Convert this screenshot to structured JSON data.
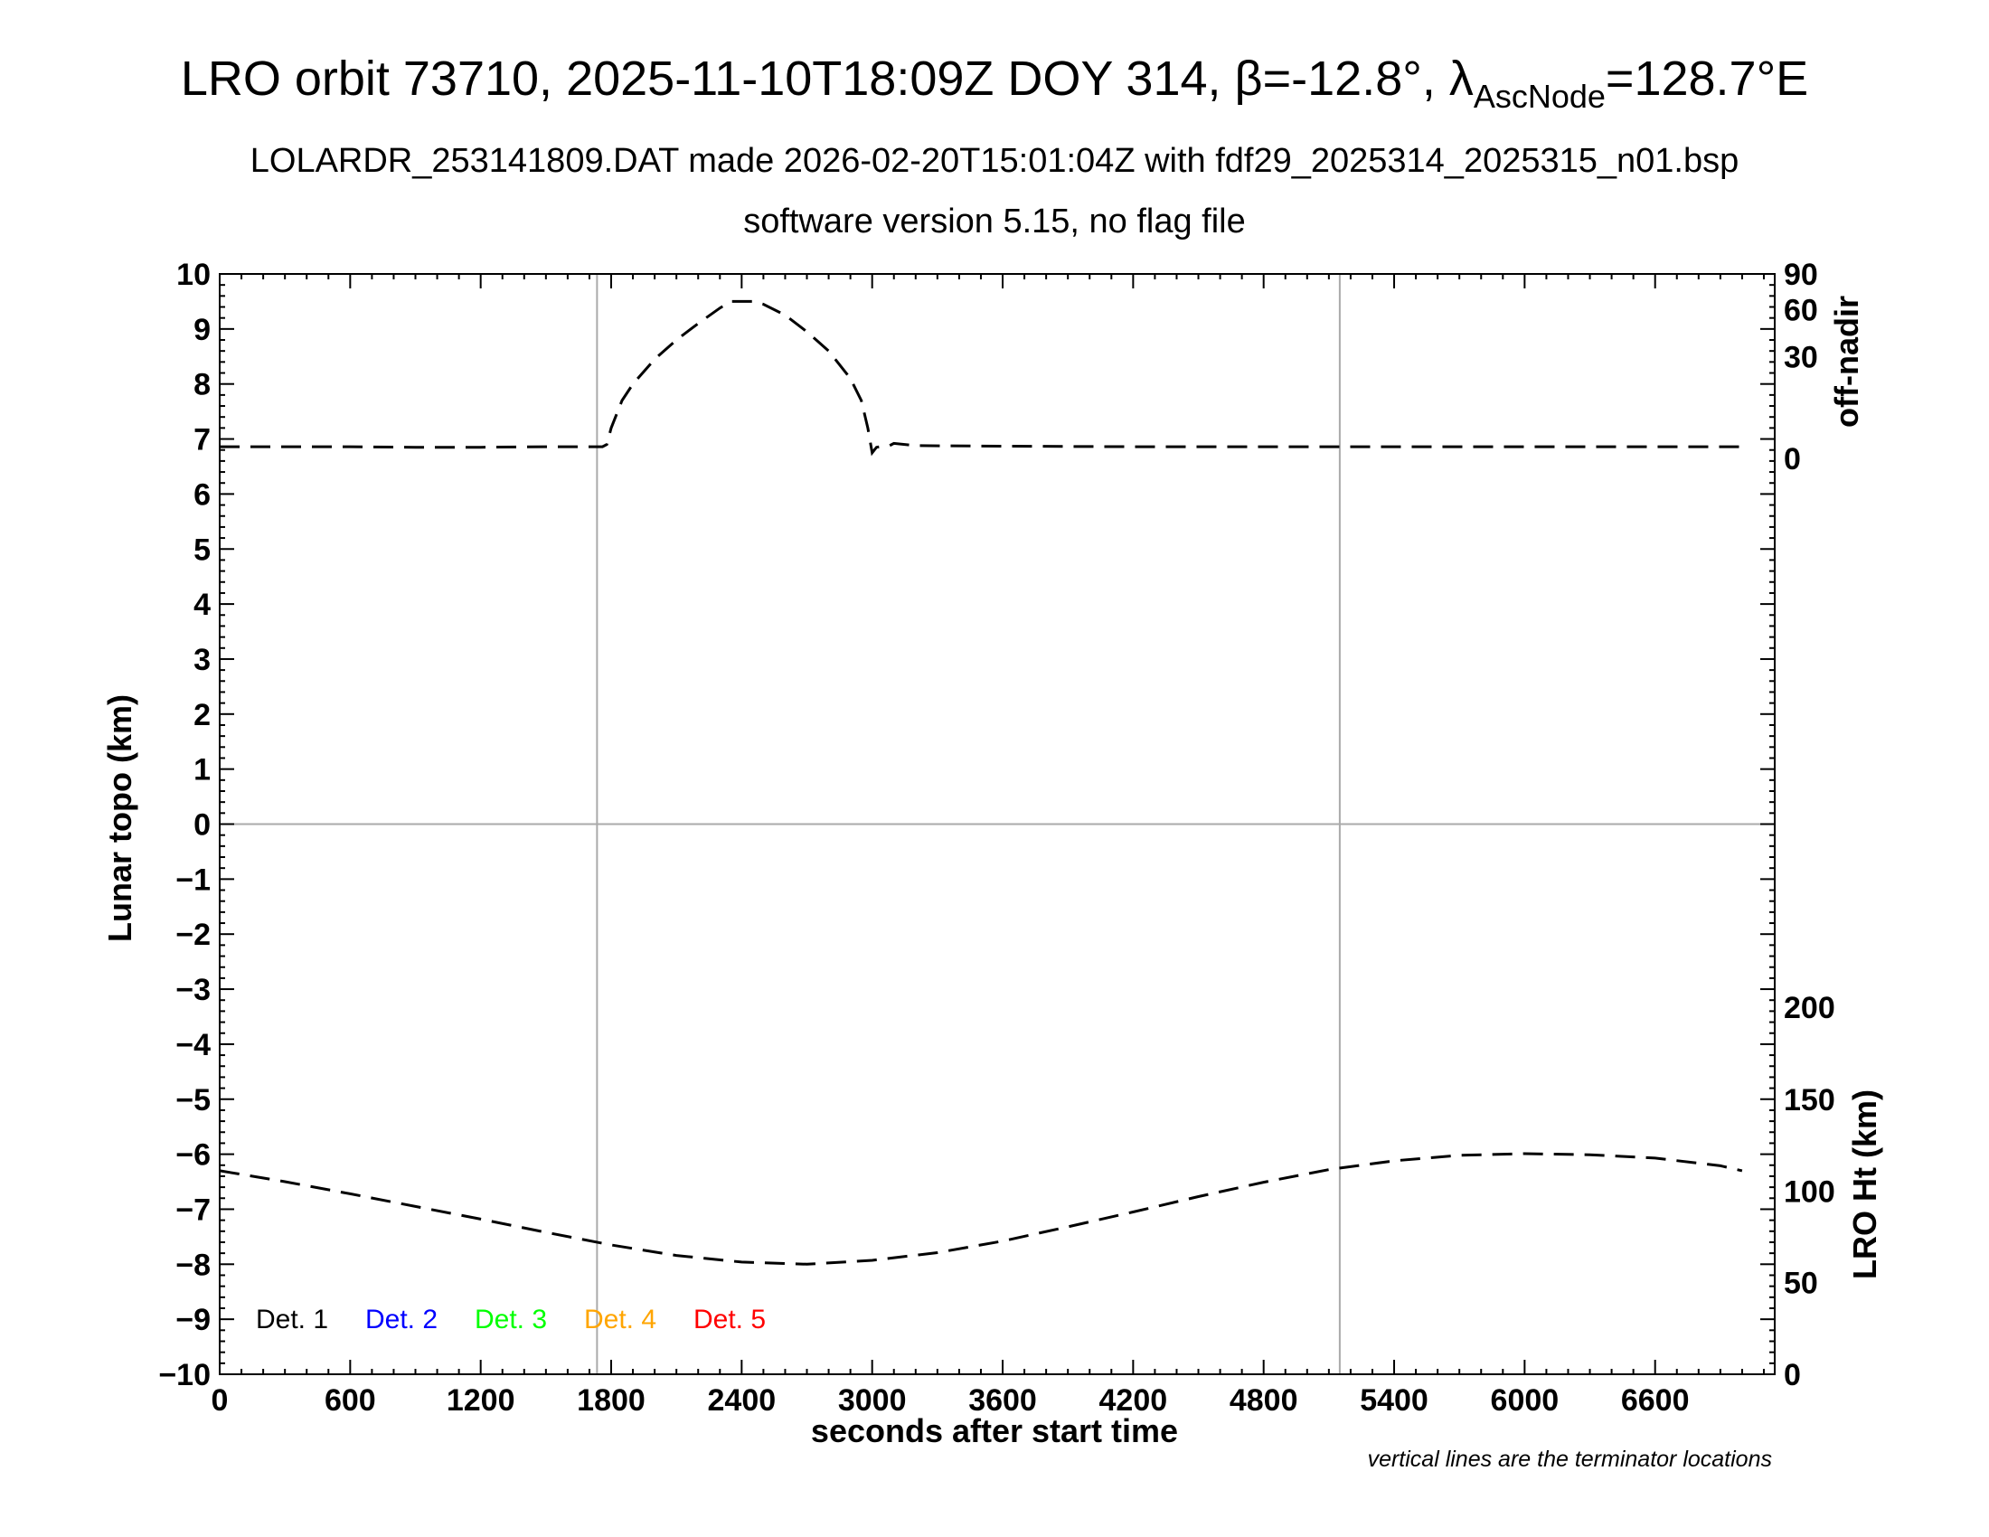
{
  "header": {
    "title_prefix": "LRO orbit 73710, 2025-11-10T18:09Z DOY 314, ",
    "beta_symbol": "β",
    "beta_value": "=-12.8°, ",
    "lambda_symbol": "λ",
    "lambda_sub": "AscNode",
    "lambda_value": "=128.7°E",
    "subtitle1": "LOLARDR_253141809.DAT made 2026-02-20T15:01:04Z with fdf29_2025314_2025315_n01.bsp",
    "subtitle2": "software version 5.15, no flag file"
  },
  "chart_data": {
    "type": "line",
    "xlabel": "seconds after start time",
    "ylabel": "Lunar topo (km)",
    "xlim": [
      0,
      7150
    ],
    "ylim": [
      -10,
      10
    ],
    "x_ticks": [
      0,
      600,
      1200,
      1800,
      2400,
      3000,
      3600,
      4200,
      4800,
      5400,
      6000,
      6600
    ],
    "x_tick_labels": [
      "0",
      "600",
      "1200",
      "1800",
      "2400",
      "3000",
      "3600",
      "4200",
      "4800",
      "5400",
      "6000",
      "6600"
    ],
    "y_ticks": [
      10,
      9,
      8,
      7,
      6,
      5,
      4,
      3,
      2,
      1,
      0,
      -1,
      -2,
      -3,
      -4,
      -5,
      -6,
      -7,
      -8,
      -9,
      -10
    ],
    "y_tick_labels": [
      "10",
      "9",
      "8",
      "7",
      "6",
      "5",
      "4",
      "3",
      "2",
      "1",
      "0",
      "−1",
      "−2",
      "−3",
      "−4",
      "−5",
      "−6",
      "−7",
      "−8",
      "−9",
      "−10"
    ],
    "terminator_lines_x": [
      1735,
      5150
    ],
    "grid": false,
    "right_axis_top": {
      "label": "off-nadir",
      "tick_labels": [
        "90",
        "60",
        "30",
        "0"
      ],
      "tick_topo_positions": [
        10,
        9.35,
        8.5,
        6.65
      ]
    },
    "right_axis_bottom": {
      "label": "LRO Ht (km)",
      "tick_labels": [
        "200",
        "150",
        "100",
        "50",
        "0"
      ],
      "tick_topo_positions": [
        -3.33,
        -5.0,
        -6.67,
        -8.33,
        -10.0
      ]
    },
    "series": [
      {
        "label": "off-nadir",
        "style": "dashed",
        "color": "#000000",
        "x": [
          0,
          300,
          600,
          900,
          1200,
          1500,
          1760,
          1780,
          1800,
          1850,
          1900,
          2000,
          2100,
          2200,
          2300,
          2350,
          2450,
          2500,
          2600,
          2700,
          2800,
          2900,
          2950,
          2980,
          3000,
          3020,
          3050,
          3080,
          3100,
          3200,
          3600,
          4200,
          4800,
          5400,
          6000,
          6600,
          7000
        ],
        "y": [
          6.86,
          6.86,
          6.86,
          6.85,
          6.85,
          6.86,
          6.86,
          6.9,
          7.2,
          7.7,
          8.0,
          8.45,
          8.8,
          9.1,
          9.38,
          9.5,
          9.5,
          9.45,
          9.25,
          8.95,
          8.6,
          8.1,
          7.7,
          7.2,
          6.75,
          6.85,
          6.87,
          6.88,
          6.92,
          6.88,
          6.87,
          6.86,
          6.86,
          6.86,
          6.86,
          6.86,
          6.86
        ]
      },
      {
        "label": "LRO Ht",
        "style": "dashed",
        "color": "#000000",
        "x": [
          0,
          300,
          600,
          900,
          1200,
          1500,
          1800,
          2100,
          2400,
          2700,
          3000,
          3300,
          3600,
          3900,
          4200,
          4500,
          4800,
          5100,
          5400,
          5700,
          6000,
          6300,
          6600,
          6900,
          7000
        ],
        "y": [
          -6.3,
          -6.5,
          -6.72,
          -6.95,
          -7.18,
          -7.42,
          -7.65,
          -7.84,
          -7.96,
          -8.0,
          -7.93,
          -7.79,
          -7.58,
          -7.32,
          -7.05,
          -6.77,
          -6.51,
          -6.28,
          -6.12,
          -6.02,
          -5.99,
          -6.01,
          -6.07,
          -6.21,
          -6.3
        ]
      }
    ],
    "legend": {
      "placement": "bottom-left",
      "entries": [
        {
          "label": "Det. 1",
          "color": "#000000"
        },
        {
          "label": "Det. 2",
          "color": "#0000ff"
        },
        {
          "label": "Det. 3",
          "color": "#00ff00"
        },
        {
          "label": "Det. 4",
          "color": "#ffa500"
        },
        {
          "label": "Det. 5",
          "color": "#ff0000"
        }
      ]
    },
    "note": "vertical lines are the terminator locations"
  }
}
